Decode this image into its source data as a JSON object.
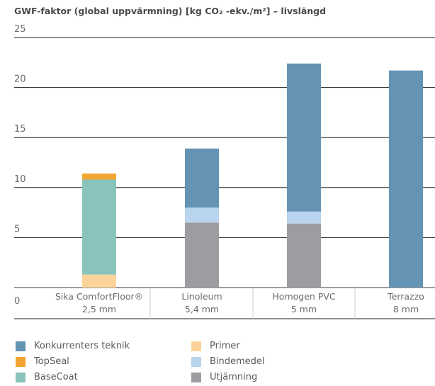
{
  "chart_data": {
    "type": "bar",
    "stacked": true,
    "title": "GWF-faktor (global uppvärmning) [kg CO₂ -ekv./m²] – livslängd",
    "categories": [
      {
        "name": "Sika ComfortFloor®",
        "sub": "2,5 mm"
      },
      {
        "name": "Linoleum",
        "sub": "5,4 mm"
      },
      {
        "name": "Homogen PVC",
        "sub": "5 mm"
      },
      {
        "name": "Terrazzo",
        "sub": "8 mm"
      }
    ],
    "series": [
      {
        "name": "Utjämning",
        "color": "#9c9da1",
        "values": [
          0,
          6.5,
          6.4,
          0
        ]
      },
      {
        "name": "Primer",
        "color": "#fcd49a",
        "values": [
          1.3,
          0,
          0,
          0
        ]
      },
      {
        "name": "Bindemedel",
        "color": "#b9d4ee",
        "values": [
          0,
          1.5,
          1.2,
          0
        ]
      },
      {
        "name": "BaseCoat",
        "color": "#8ac3bb",
        "values": [
          9.5,
          0,
          0,
          0
        ]
      },
      {
        "name": "TopSeal",
        "color": "#f2a632",
        "values": [
          0.6,
          0,
          0,
          0
        ]
      },
      {
        "name": "Konkurrenters teknik",
        "color": "#6593b3",
        "values": [
          0,
          5.9,
          14.8,
          21.7
        ]
      }
    ],
    "yticks": [
      0,
      5,
      10,
      15,
      20,
      25
    ],
    "ylim": [
      0,
      25
    ],
    "grid": true,
    "legend_position": "bottom-left"
  },
  "legend": [
    {
      "label": "Konkurrenters teknik",
      "color": "#6593b3"
    },
    {
      "label": "TopSeal",
      "color": "#f2a632"
    },
    {
      "label": "BaseCoat",
      "color": "#8ac3bb"
    },
    {
      "label": "Primer",
      "color": "#fcd49a"
    },
    {
      "label": "Bindemedel",
      "color": "#b9d4ee"
    },
    {
      "label": "Utjämning",
      "color": "#9c9da1"
    }
  ]
}
